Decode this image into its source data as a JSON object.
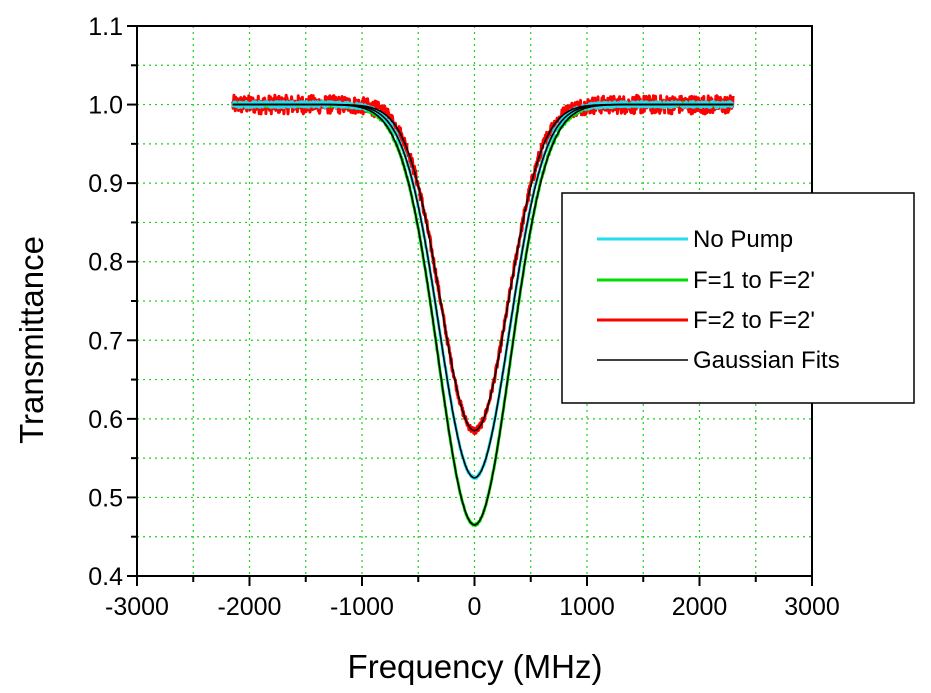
{
  "chart_data": {
    "type": "line",
    "title": "",
    "xlabel": "Frequency (MHz)",
    "ylabel": "Transmittance",
    "xlim": [
      -3000,
      3000
    ],
    "ylim": [
      0.4,
      1.1
    ],
    "x_ticks": [
      -3000,
      -2000,
      -1000,
      0,
      1000,
      2000,
      3000
    ],
    "x_tick_labels": [
      "-3000",
      "-2000",
      "-1000",
      "0",
      "1000",
      "2000",
      "3000"
    ],
    "y_ticks": [
      0.4,
      0.5,
      0.6,
      0.7,
      0.8,
      0.9,
      1.0,
      1.1
    ],
    "y_tick_labels": [
      "0.4",
      "0.5",
      "0.6",
      "0.7",
      "0.8",
      "0.9",
      "1.0",
      "1.1"
    ],
    "grid": true,
    "grid_style": "dotted",
    "grid_color": "#1fd11f",
    "legend_position": "right",
    "x_range": [
      -2150,
      2300
    ],
    "series": [
      {
        "name": "F=2 to F=2'",
        "color": "#ff0000",
        "baseline": 1.0,
        "depth": 0.415,
        "center": 0,
        "sigma": 300,
        "noise": 0.012
      },
      {
        "name": "F=1 to F=2'",
        "color": "#00dd00",
        "baseline": 1.0,
        "depth": 0.535,
        "center": 0,
        "sigma": 320,
        "noise": 0.003
      },
      {
        "name": "No Pump",
        "color": "#22ddee",
        "baseline": 1.0,
        "depth": 0.475,
        "center": 0,
        "sigma": 310,
        "noise": 0.004
      },
      {
        "name": "Gaussian Fits",
        "color": "#000000",
        "fits": [
          {
            "baseline": 1.0,
            "depth": 0.415,
            "center": 0,
            "sigma": 300
          },
          {
            "baseline": 1.0,
            "depth": 0.475,
            "center": 0,
            "sigma": 310
          },
          {
            "baseline": 1.0,
            "depth": 0.535,
            "center": 0,
            "sigma": 320
          }
        ]
      }
    ],
    "legend": [
      "No Pump",
      "F=1 to F=2'",
      "F=2 to F=2'",
      "Gaussian Fits"
    ]
  }
}
